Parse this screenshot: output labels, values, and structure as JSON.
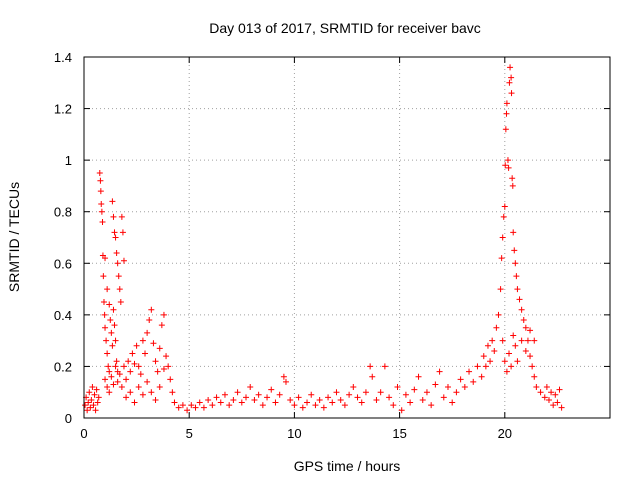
{
  "chart_data": {
    "type": "scatter",
    "title": "Day 013 of 2017, SRMTID for receiver bavc",
    "xlabel": "GPS time / hours",
    "ylabel": "SRMTID / TECUs",
    "xlim": [
      0,
      25
    ],
    "ylim": [
      0,
      1.4
    ],
    "xticks": [
      0,
      5,
      10,
      15,
      20
    ],
    "xtick_labels": [
      "0",
      "5",
      "10",
      "15",
      "20"
    ],
    "yticks": [
      0,
      0.2,
      0.4,
      0.6,
      0.8,
      1,
      1.2,
      1.4
    ],
    "ytick_labels": [
      "0",
      "0.2",
      "0.4",
      "0.6",
      "0.8",
      "1",
      "1.2",
      "1.4"
    ],
    "grid": true,
    "marker": "+",
    "color": "#ff0000",
    "series": [
      {
        "name": "bavc",
        "points": [
          [
            0.05,
            0.05
          ],
          [
            0.1,
            0.08
          ],
          [
            0.15,
            0.03
          ],
          [
            0.2,
            0.06
          ],
          [
            0.25,
            0.1
          ],
          [
            0.3,
            0.04
          ],
          [
            0.35,
            0.07
          ],
          [
            0.4,
            0.12
          ],
          [
            0.45,
            0.05
          ],
          [
            0.5,
            0.09
          ],
          [
            0.55,
            0.03
          ],
          [
            0.6,
            0.11
          ],
          [
            0.65,
            0.06
          ],
          [
            0.7,
            0.08
          ],
          [
            0.75,
            0.95
          ],
          [
            0.78,
            0.92
          ],
          [
            0.8,
            0.88
          ],
          [
            0.82,
            0.83
          ],
          [
            0.85,
            0.8
          ],
          [
            0.88,
            0.76
          ],
          [
            0.9,
            0.63
          ],
          [
            0.92,
            0.55
          ],
          [
            0.95,
            0.45
          ],
          [
            0.98,
            0.4
          ],
          [
            1.0,
            0.35
          ],
          [
            1.05,
            0.3
          ],
          [
            1.1,
            0.25
          ],
          [
            1.15,
            0.2
          ],
          [
            1.2,
            0.18
          ],
          [
            1.0,
            0.62
          ],
          [
            1.1,
            0.5
          ],
          [
            1.2,
            0.44
          ],
          [
            1.25,
            0.38
          ],
          [
            1.3,
            0.33
          ],
          [
            1.35,
            0.28
          ],
          [
            1.4,
            0.42
          ],
          [
            1.45,
            0.36
          ],
          [
            1.5,
            0.3
          ],
          [
            1.55,
            0.22
          ],
          [
            1.6,
            0.18
          ],
          [
            1.35,
            0.84
          ],
          [
            1.4,
            0.78
          ],
          [
            1.45,
            0.72
          ],
          [
            1.5,
            0.7
          ],
          [
            1.55,
            0.64
          ],
          [
            1.6,
            0.6
          ],
          [
            1.65,
            0.55
          ],
          [
            1.7,
            0.5
          ],
          [
            1.75,
            0.45
          ],
          [
            1.8,
            0.78
          ],
          [
            1.85,
            0.72
          ],
          [
            1.9,
            0.61
          ],
          [
            1.0,
            0.15
          ],
          [
            1.1,
            0.12
          ],
          [
            1.2,
            0.1
          ],
          [
            1.3,
            0.16
          ],
          [
            1.4,
            0.13
          ],
          [
            1.5,
            0.2
          ],
          [
            1.6,
            0.14
          ],
          [
            1.7,
            0.17
          ],
          [
            1.8,
            0.12
          ],
          [
            1.9,
            0.2
          ],
          [
            2.0,
            0.15
          ],
          [
            2.1,
            0.22
          ],
          [
            2.2,
            0.18
          ],
          [
            2.3,
            0.25
          ],
          [
            2.4,
            0.21
          ],
          [
            2.5,
            0.28
          ],
          [
            2.6,
            0.2
          ],
          [
            2.7,
            0.17
          ],
          [
            2.8,
            0.3
          ],
          [
            2.9,
            0.25
          ],
          [
            3.0,
            0.33
          ],
          [
            3.1,
            0.38
          ],
          [
            3.2,
            0.42
          ],
          [
            3.3,
            0.29
          ],
          [
            3.4,
            0.22
          ],
          [
            3.5,
            0.18
          ],
          [
            3.6,
            0.27
          ],
          [
            3.7,
            0.36
          ],
          [
            3.8,
            0.4
          ],
          [
            2.0,
            0.08
          ],
          [
            2.2,
            0.1
          ],
          [
            2.4,
            0.06
          ],
          [
            2.6,
            0.12
          ],
          [
            2.8,
            0.09
          ],
          [
            3.0,
            0.14
          ],
          [
            3.2,
            0.1
          ],
          [
            3.4,
            0.07
          ],
          [
            3.6,
            0.12
          ],
          [
            3.8,
            0.19
          ],
          [
            3.9,
            0.24
          ],
          [
            4.0,
            0.2
          ],
          [
            4.1,
            0.15
          ],
          [
            4.2,
            0.1
          ],
          [
            4.3,
            0.06
          ],
          [
            4.5,
            0.04
          ],
          [
            4.7,
            0.05
          ],
          [
            4.9,
            0.03
          ],
          [
            5.1,
            0.05
          ],
          [
            5.3,
            0.04
          ],
          [
            5.5,
            0.06
          ],
          [
            5.7,
            0.04
          ],
          [
            5.9,
            0.07
          ],
          [
            6.1,
            0.05
          ],
          [
            6.3,
            0.08
          ],
          [
            6.5,
            0.06
          ],
          [
            6.7,
            0.09
          ],
          [
            6.9,
            0.05
          ],
          [
            7.1,
            0.07
          ],
          [
            7.3,
            0.1
          ],
          [
            7.5,
            0.06
          ],
          [
            7.7,
            0.08
          ],
          [
            7.9,
            0.12
          ],
          [
            8.1,
            0.07
          ],
          [
            8.3,
            0.09
          ],
          [
            8.5,
            0.05
          ],
          [
            8.7,
            0.08
          ],
          [
            8.9,
            0.11
          ],
          [
            9.1,
            0.06
          ],
          [
            9.3,
            0.09
          ],
          [
            9.5,
            0.16
          ],
          [
            9.6,
            0.14
          ],
          [
            9.8,
            0.07
          ],
          [
            10.0,
            0.05
          ],
          [
            10.2,
            0.08
          ],
          [
            10.4,
            0.04
          ],
          [
            10.6,
            0.06
          ],
          [
            10.8,
            0.09
          ],
          [
            11.0,
            0.05
          ],
          [
            11.2,
            0.07
          ],
          [
            11.4,
            0.04
          ],
          [
            11.6,
            0.08
          ],
          [
            11.8,
            0.06
          ],
          [
            12.0,
            0.1
          ],
          [
            12.2,
            0.07
          ],
          [
            12.4,
            0.05
          ],
          [
            12.6,
            0.09
          ],
          [
            12.8,
            0.12
          ],
          [
            13.0,
            0.08
          ],
          [
            13.2,
            0.06
          ],
          [
            13.4,
            0.1
          ],
          [
            13.6,
            0.2
          ],
          [
            13.7,
            0.16
          ],
          [
            13.9,
            0.07
          ],
          [
            14.1,
            0.1
          ],
          [
            14.3,
            0.2
          ],
          [
            14.5,
            0.08
          ],
          [
            14.7,
            0.05
          ],
          [
            14.9,
            0.12
          ],
          [
            15.1,
            0.03
          ],
          [
            15.3,
            0.09
          ],
          [
            15.5,
            0.06
          ],
          [
            15.7,
            0.11
          ],
          [
            15.9,
            0.16
          ],
          [
            16.1,
            0.07
          ],
          [
            16.3,
            0.1
          ],
          [
            16.5,
            0.05
          ],
          [
            16.7,
            0.13
          ],
          [
            16.9,
            0.18
          ],
          [
            17.1,
            0.08
          ],
          [
            17.3,
            0.12
          ],
          [
            17.5,
            0.06
          ],
          [
            17.7,
            0.1
          ],
          [
            17.9,
            0.15
          ],
          [
            18.1,
            0.12
          ],
          [
            18.3,
            0.18
          ],
          [
            18.5,
            0.14
          ],
          [
            18.7,
            0.2
          ],
          [
            18.9,
            0.16
          ],
          [
            19.0,
            0.24
          ],
          [
            19.1,
            0.2
          ],
          [
            19.2,
            0.28
          ],
          [
            19.3,
            0.22
          ],
          [
            19.4,
            0.3
          ],
          [
            19.5,
            0.26
          ],
          [
            19.6,
            0.35
          ],
          [
            19.7,
            0.4
          ],
          [
            19.8,
            0.5
          ],
          [
            19.85,
            0.62
          ],
          [
            19.9,
            0.7
          ],
          [
            19.95,
            0.78
          ],
          [
            20.0,
            0.82
          ],
          [
            20.02,
            0.98
          ],
          [
            20.05,
            1.12
          ],
          [
            20.08,
            1.18
          ],
          [
            20.1,
            1.22
          ],
          [
            20.15,
            1.0
          ],
          [
            20.18,
            0.97
          ],
          [
            20.22,
            1.3
          ],
          [
            20.25,
            1.36
          ],
          [
            20.3,
            1.32
          ],
          [
            20.32,
            1.26
          ],
          [
            20.35,
            0.93
          ],
          [
            20.38,
            0.9
          ],
          [
            20.4,
            0.72
          ],
          [
            20.45,
            0.65
          ],
          [
            20.5,
            0.6
          ],
          [
            20.55,
            0.55
          ],
          [
            20.6,
            0.5
          ],
          [
            20.7,
            0.46
          ],
          [
            20.8,
            0.42
          ],
          [
            20.9,
            0.38
          ],
          [
            21.0,
            0.35
          ],
          [
            21.1,
            0.3
          ],
          [
            21.2,
            0.24
          ],
          [
            21.3,
            0.2
          ],
          [
            21.4,
            0.16
          ],
          [
            21.5,
            0.12
          ],
          [
            21.7,
            0.1
          ],
          [
            21.9,
            0.08
          ],
          [
            19.9,
            0.3
          ],
          [
            20.0,
            0.22
          ],
          [
            20.1,
            0.18
          ],
          [
            20.2,
            0.25
          ],
          [
            20.3,
            0.2
          ],
          [
            20.4,
            0.32
          ],
          [
            20.5,
            0.28
          ],
          [
            20.6,
            0.22
          ],
          [
            20.8,
            0.3
          ],
          [
            21.0,
            0.26
          ],
          [
            21.2,
            0.34
          ],
          [
            21.4,
            0.3
          ],
          [
            22.0,
            0.12
          ],
          [
            22.1,
            0.07
          ],
          [
            22.2,
            0.1
          ],
          [
            22.3,
            0.05
          ],
          [
            22.4,
            0.09
          ],
          [
            22.5,
            0.06
          ],
          [
            22.6,
            0.11
          ],
          [
            22.7,
            0.04
          ]
        ]
      }
    ]
  }
}
